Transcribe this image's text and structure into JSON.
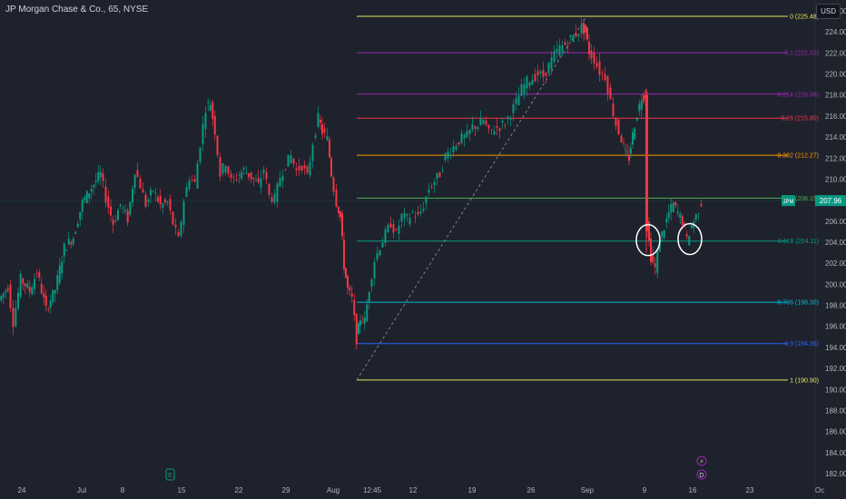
{
  "header": {
    "symbol_title": "JP Morgan Chase & Co., 65, NYSE",
    "currency": "USD"
  },
  "price_tag": {
    "label": "JPM",
    "value": "207.96",
    "color": "#089981"
  },
  "chart_data": {
    "type": "candlestick",
    "title": "JP Morgan Chase & Co., 65, NYSE",
    "ylim": [
      181,
      227
    ],
    "y_ticks": [
      182,
      184,
      186,
      188,
      190,
      192,
      194,
      196,
      198,
      200,
      202,
      204,
      206,
      208,
      210,
      212,
      214,
      216,
      218,
      220,
      222,
      224,
      226
    ],
    "x_ticks": [
      "24",
      "Jul",
      "8",
      "15",
      "22",
      "29",
      "Aug",
      "12:45",
      "12",
      "19",
      "26",
      "Sep",
      "9",
      "16",
      "23",
      "Oc"
    ],
    "current_price": 207.96,
    "fib_levels": [
      {
        "ratio": "0",
        "price": "225.48",
        "color": "#e6e65a"
      },
      {
        "ratio": "0.1",
        "price": "222.02",
        "color": "#9c27b0"
      },
      {
        "ratio": "0.214",
        "price": "218.08",
        "color": "#9c27b0"
      },
      {
        "ratio": "0.28",
        "price": "215.80",
        "color": "#f23645"
      },
      {
        "ratio": "0.382",
        "price": "212.27",
        "color": "#ff9800"
      },
      {
        "ratio": "0.5",
        "price": "208.19",
        "color": "#4caf50"
      },
      {
        "ratio": "0.618",
        "price": "204.11",
        "color": "#089981"
      },
      {
        "ratio": "0.786",
        "price": "198.30",
        "color": "#00bcd4"
      },
      {
        "ratio": "0.9",
        "price": "194.36",
        "color": "#2962ff"
      },
      {
        "ratio": "1",
        "price": "190.90",
        "color": "#e6e65a"
      }
    ],
    "trend_line": {
      "from_price": 190.9,
      "to_price": 225.48
    },
    "price_path": [
      [
        0,
        198.5
      ],
      [
        10,
        199.8
      ],
      [
        16,
        196.4
      ],
      [
        24,
        200.5
      ],
      [
        34,
        199.4
      ],
      [
        42,
        201.2
      ],
      [
        52,
        197.6
      ],
      [
        62,
        199.5
      ],
      [
        72,
        203.5
      ],
      [
        82,
        204.5
      ],
      [
        92,
        207.8
      ],
      [
        102,
        209.2
      ],
      [
        112,
        210.5
      ],
      [
        118,
        208.2
      ],
      [
        126,
        205.8
      ],
      [
        134,
        207.6
      ],
      [
        142,
        206.2
      ],
      [
        150,
        210.9
      ],
      [
        156,
        209.4
      ],
      [
        162,
        207.6
      ],
      [
        170,
        209.0
      ],
      [
        178,
        207.5
      ],
      [
        186,
        207.8
      ],
      [
        192,
        205.8
      ],
      [
        198,
        204.2
      ],
      [
        204,
        208.0
      ],
      [
        210,
        210.2
      ],
      [
        216,
        209.6
      ],
      [
        222,
        213.4
      ],
      [
        228,
        216.8
      ],
      [
        233,
        217.2
      ],
      [
        238,
        214.6
      ],
      [
        244,
        210.5
      ],
      [
        250,
        211.6
      ],
      [
        256,
        209.8
      ],
      [
        262,
        210.2
      ],
      [
        270,
        210.9
      ],
      [
        278,
        210.2
      ],
      [
        286,
        209.4
      ],
      [
        292,
        211.0
      ],
      [
        298,
        208.4
      ],
      [
        304,
        208.1
      ],
      [
        310,
        210.2
      ],
      [
        316,
        211.4
      ],
      [
        322,
        212.2
      ],
      [
        328,
        210.8
      ],
      [
        334,
        211.3
      ],
      [
        340,
        210.2
      ],
      [
        346,
        213.5
      ],
      [
        352,
        215.8
      ],
      [
        356,
        214.5
      ],
      [
        362,
        213.8
      ],
      [
        366,
        210.5
      ],
      [
        372,
        207.8
      ],
      [
        376,
        206.4
      ],
      [
        380,
        201.8
      ],
      [
        384,
        199.5
      ],
      [
        389,
        198.6
      ],
      [
        394,
        194.8
      ],
      [
        398,
        196.8
      ],
      [
        403,
        196.5
      ],
      [
        408,
        199.6
      ],
      [
        414,
        202.3
      ],
      [
        420,
        203.6
      ],
      [
        426,
        204.8
      ],
      [
        432,
        205.8
      ],
      [
        438,
        204.8
      ],
      [
        444,
        206.5
      ],
      [
        450,
        206.2
      ],
      [
        456,
        206.8
      ],
      [
        462,
        206.4
      ],
      [
        468,
        207.5
      ],
      [
        474,
        209.1
      ],
      [
        480,
        209.8
      ],
      [
        486,
        210.5
      ],
      [
        492,
        212.2
      ],
      [
        498,
        212.8
      ],
      [
        504,
        213.4
      ],
      [
        510,
        213.9
      ],
      [
        516,
        214.1
      ],
      [
        522,
        215.0
      ],
      [
        528,
        215.1
      ],
      [
        534,
        215.6
      ],
      [
        540,
        214.4
      ],
      [
        546,
        214.8
      ],
      [
        552,
        215.0
      ],
      [
        558,
        215.4
      ],
      [
        564,
        216.3
      ],
      [
        570,
        217.3
      ],
      [
        576,
        218.6
      ],
      [
        582,
        219.3
      ],
      [
        588,
        219.6
      ],
      [
        594,
        220.0
      ],
      [
        600,
        219.8
      ],
      [
        606,
        220.8
      ],
      [
        612,
        221.8
      ],
      [
        618,
        222.5
      ],
      [
        624,
        222.8
      ],
      [
        630,
        223.4
      ],
      [
        636,
        223.8
      ],
      [
        642,
        224.4
      ],
      [
        646,
        224.0
      ],
      [
        650,
        222.1
      ],
      [
        656,
        221.4
      ],
      [
        662,
        220.2
      ],
      [
        668,
        219.8
      ],
      [
        674,
        217.4
      ],
      [
        680,
        215.2
      ],
      [
        686,
        213.8
      ],
      [
        690,
        212.4
      ],
      [
        694,
        212.0
      ],
      [
        698,
        214.2
      ],
      [
        703,
        216.2
      ],
      [
        708,
        217.8
      ],
      [
        712,
        218.0
      ],
      [
        714,
        205.5
      ],
      [
        718,
        202.6
      ],
      [
        723,
        201.5
      ],
      [
        728,
        204.2
      ],
      [
        733,
        205.4
      ],
      [
        738,
        206.8
      ],
      [
        743,
        207.6
      ],
      [
        748,
        206.8
      ],
      [
        753,
        206.0
      ],
      [
        758,
        204.2
      ],
      [
        763,
        205.6
      ],
      [
        768,
        206.5
      ],
      [
        774,
        207.8
      ]
    ],
    "circles": [
      {
        "time_x": 714,
        "price": 204.2
      },
      {
        "time_x": 760,
        "price": 204.3
      }
    ],
    "markers": [
      {
        "type": "earnings",
        "x": 188
      },
      {
        "type": "dividend",
        "x": 773
      }
    ]
  }
}
